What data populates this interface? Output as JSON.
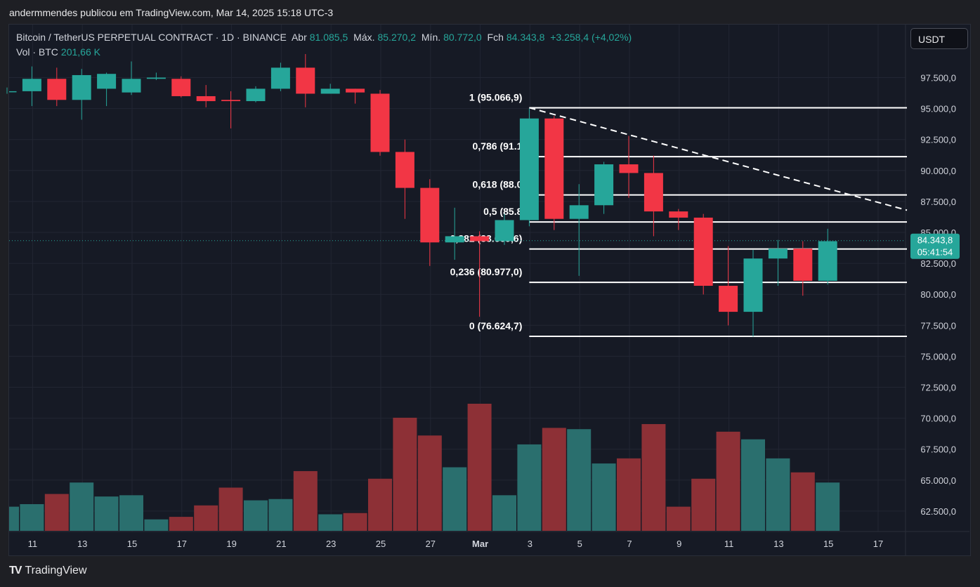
{
  "caption": "andermmendes publicou em TradingView.com, Mar 14, 2025 15:18 UTC-3",
  "legend": {
    "symbol": "Bitcoin / TetherUS PERPETUAL CONTRACT · 1D · BINANCE",
    "open_label": "Abr",
    "open": "81.085,5",
    "high_label": "Máx.",
    "high": "85.270,2",
    "low_label": "Mín.",
    "low": "80.772,0",
    "close_label": "Fch",
    "close": "84.343,8",
    "change": "+3.258,4 (+4,02%)"
  },
  "volume": {
    "label": "Vol · BTC",
    "value": "201,66 K"
  },
  "currency_button": "USDT",
  "brand": "TradingView",
  "price_tag": {
    "price": "84.343,8",
    "countdown": "05:41:54"
  },
  "colors": {
    "up": "#26a69a",
    "down": "#f23645",
    "background": "#161a25",
    "up_volume": "#2a6f6e",
    "down_volume": "#8d3036"
  },
  "chart_data": {
    "type": "candlestick",
    "x_tick_labels": [
      "11",
      "13",
      "15",
      "17",
      "19",
      "21",
      "23",
      "25",
      "27",
      "Mar",
      "3",
      "5",
      "7",
      "9",
      "11",
      "13",
      "15",
      "17"
    ],
    "y_tick_labels": [
      "97.500,0",
      "95.000,0",
      "92.500,0",
      "90.000,0",
      "87.500,0",
      "85.000,0",
      "82.500,0",
      "80.000,0",
      "77.500,0",
      "75.000,0",
      "72.500,0",
      "70.000,0",
      "67.500,0",
      "65.000,0",
      "62.500,0"
    ],
    "ylim": [
      60800,
      99300
    ],
    "dates": [
      "Feb 9",
      "Feb 10",
      "Feb 11",
      "Feb 12",
      "Feb 13",
      "Feb 14",
      "Feb 15",
      "Feb 16",
      "Feb 17",
      "Feb 18",
      "Feb 19",
      "Feb 20",
      "Feb 21",
      "Feb 22",
      "Feb 23",
      "Feb 24",
      "Feb 25",
      "Feb 26",
      "Feb 27",
      "Feb 28",
      "Mar 1",
      "Mar 2",
      "Mar 3",
      "Mar 4",
      "Mar 5",
      "Mar 6",
      "Mar 7",
      "Mar 8",
      "Mar 9",
      "Mar 10",
      "Mar 11",
      "Mar 12",
      "Mar 13",
      "Mar 14"
    ],
    "candles": [
      {
        "o": 96400,
        "h": 96700,
        "l": 96200,
        "c": 96400
      },
      {
        "o": 96400,
        "h": 98400,
        "l": 95200,
        "c": 97400
      },
      {
        "o": 97400,
        "h": 98300,
        "l": 95200,
        "c": 95700
      },
      {
        "o": 95700,
        "h": 98200,
        "l": 94100,
        "c": 97700
      },
      {
        "o": 96600,
        "h": 97900,
        "l": 95200,
        "c": 97800
      },
      {
        "o": 96300,
        "h": 98800,
        "l": 96100,
        "c": 97400
      },
      {
        "o": 97400,
        "h": 97900,
        "l": 97300,
        "c": 97500
      },
      {
        "o": 97400,
        "h": 97600,
        "l": 95900,
        "c": 96000
      },
      {
        "o": 96000,
        "h": 96900,
        "l": 95100,
        "c": 95600
      },
      {
        "o": 95700,
        "h": 96400,
        "l": 93400,
        "c": 95600
      },
      {
        "o": 95600,
        "h": 96800,
        "l": 95500,
        "c": 96600
      },
      {
        "o": 96600,
        "h": 98700,
        "l": 96400,
        "c": 98300
      },
      {
        "o": 98300,
        "h": 99400,
        "l": 95100,
        "c": 96200
      },
      {
        "o": 96200,
        "h": 97000,
        "l": 96200,
        "c": 96600
      },
      {
        "o": 96600,
        "h": 96600,
        "l": 95400,
        "c": 96300
      },
      {
        "o": 96200,
        "h": 96500,
        "l": 91200,
        "c": 91500
      },
      {
        "o": 91500,
        "h": 92500,
        "l": 86100,
        "c": 88600
      },
      {
        "o": 88600,
        "h": 89300,
        "l": 82300,
        "c": 84200
      },
      {
        "o": 84200,
        "h": 87000,
        "l": 82800,
        "c": 84700
      },
      {
        "o": 84700,
        "h": 85100,
        "l": 78200,
        "c": 84300
      },
      {
        "o": 84300,
        "h": 86500,
        "l": 84000,
        "c": 86000
      },
      {
        "o": 86000,
        "h": 95000,
        "l": 85500,
        "c": 94200
      },
      {
        "o": 94200,
        "h": 94400,
        "l": 85200,
        "c": 86100
      },
      {
        "o": 86100,
        "h": 88900,
        "l": 81500,
        "c": 87200
      },
      {
        "o": 87200,
        "h": 90700,
        "l": 86500,
        "c": 90500
      },
      {
        "o": 90500,
        "h": 92800,
        "l": 87800,
        "c": 89800
      },
      {
        "o": 89800,
        "h": 91200,
        "l": 84700,
        "c": 86700
      },
      {
        "o": 86700,
        "h": 86900,
        "l": 85200,
        "c": 86200
      },
      {
        "o": 86200,
        "h": 86500,
        "l": 80000,
        "c": 80700
      },
      {
        "o": 80700,
        "h": 83900,
        "l": 77500,
        "c": 78600
      },
      {
        "o": 78600,
        "h": 83600,
        "l": 76600,
        "c": 82900
      },
      {
        "o": 82900,
        "h": 84400,
        "l": 80700,
        "c": 83700
      },
      {
        "o": 83700,
        "h": 84300,
        "l": 79900,
        "c": 81100
      },
      {
        "o": 81100,
        "h": 85300,
        "l": 80800,
        "c": 84300
      }
    ],
    "volume_relative": [
      0.19,
      0.21,
      0.29,
      0.38,
      0.27,
      0.28,
      0.09,
      0.11,
      0.2,
      0.34,
      0.24,
      0.25,
      0.47,
      0.13,
      0.14,
      0.41,
      0.89,
      0.75,
      0.5,
      1.0,
      0.28,
      0.68,
      0.81,
      0.8,
      0.53,
      0.57,
      0.84,
      0.19,
      0.41,
      0.78,
      0.72,
      0.57,
      0.46,
      0.38
    ],
    "fibonacci": {
      "levels": [
        {
          "ratio": "1",
          "price": 95066.9,
          "label": "1 (95.066,9)"
        },
        {
          "ratio": "0.786",
          "price": 91120,
          "label": "0,786 (91.1"
        },
        {
          "ratio": "0.618",
          "price": 88030,
          "label": "0,618 (88.0"
        },
        {
          "ratio": "0.5",
          "price": 85850,
          "label": "0,5 (85.8"
        },
        {
          "ratio": "0.382",
          "price": 83669.6,
          "label": "0,382 (83.669,6)"
        },
        {
          "ratio": "0.236",
          "price": 80977.0,
          "label": "0,236 (80.977,0)"
        },
        {
          "ratio": "0",
          "price": 76624.7,
          "label": "0 (76.624,7)"
        }
      ],
      "start_date": "Mar 2"
    },
    "trendline": {
      "from": {
        "date": "Mar 2",
        "price": 95066.9
      },
      "to_price_at_right_edge": 86800
    },
    "last_price": 84343.8,
    "grid": true
  }
}
